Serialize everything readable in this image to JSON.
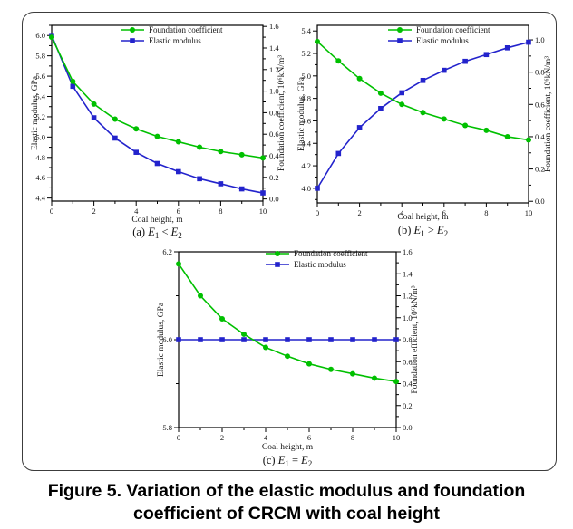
{
  "figure": {
    "caption_line1": "Figure 5. Variation of the elastic modulus and foundation",
    "caption_line2": "coefficient of CRCM with coal height"
  },
  "colors": {
    "foundation_green": "#00C000",
    "elastic_blue": "#2323CC",
    "axis_black": "#000000",
    "border_gray": "#3c3c3c"
  },
  "chart_data": [
    {
      "id": "a",
      "type": "line",
      "xlabel": "Coal height, m",
      "x": [
        0,
        1,
        2,
        3,
        4,
        5,
        6,
        7,
        8,
        9,
        10
      ],
      "xlim": [
        0,
        10
      ],
      "x_major_ticks": [
        0,
        2,
        4,
        6,
        8,
        10
      ],
      "x_minor_ticks": [
        1,
        3,
        5,
        7,
        9
      ],
      "grid": false,
      "legend_position": "top-center-inside",
      "left_axis": {
        "label": "Elastic modulus, GPa",
        "min": 4.37,
        "max": 6.1,
        "major_ticks": [
          4.4,
          4.6,
          4.8,
          5.0,
          5.2,
          5.4,
          5.6,
          5.8,
          6.0
        ],
        "minor_step": 0.1,
        "decimals": 1
      },
      "right_axis": {
        "label": "Foundation coefficient, 10⁶kN/m³",
        "min": -0.02,
        "max": 1.61,
        "major_ticks": [
          0.0,
          0.2,
          0.4,
          0.6,
          0.8,
          1.0,
          1.2,
          1.4,
          1.6
        ],
        "minor_step": 0.1,
        "decimals": 1
      },
      "series": [
        {
          "name": "Foundation coefficient",
          "axis": "right",
          "color": "foundation_green",
          "marker": "circle",
          "values": [
            1.5,
            1.09,
            0.88,
            0.74,
            0.65,
            0.58,
            0.53,
            0.48,
            0.44,
            0.41,
            0.38
          ]
        },
        {
          "name": "Elastic modulus",
          "axis": "left",
          "color": "elastic_blue",
          "marker": "square",
          "values": [
            6.0,
            5.5,
            5.19,
            4.99,
            4.85,
            4.74,
            4.66,
            4.59,
            4.54,
            4.49,
            4.45
          ]
        }
      ],
      "sub_label": {
        "prefix": "(a)",
        "lhs_base": "E",
        "lhs_sub": "1",
        "operator": "<",
        "rhs_base": "E",
        "rhs_sub": "2"
      }
    },
    {
      "id": "b",
      "type": "line",
      "xlabel": "Coal height, m",
      "x": [
        0,
        1,
        2,
        3,
        4,
        5,
        6,
        7,
        8,
        9,
        10
      ],
      "xlim": [
        0,
        10
      ],
      "x_major_ticks": [
        0,
        2,
        4,
        6,
        8,
        10
      ],
      "x_minor_ticks": [
        1,
        3,
        5,
        7,
        9
      ],
      "grid": false,
      "legend_position": "top-center-inside",
      "left_axis": {
        "label": "Elastic modulus, GPa",
        "min": 3.87,
        "max": 5.45,
        "major_ticks": [
          4.0,
          4.2,
          4.4,
          4.6,
          4.8,
          5.0,
          5.2,
          5.4
        ],
        "minor_step": 0.1,
        "decimals": 1
      },
      "right_axis": {
        "label": "Foundation coefficient, 10⁶kN/m³",
        "min": -0.01,
        "max": 1.09,
        "major_ticks": [
          0.0,
          0.2,
          0.4,
          0.6,
          0.8,
          1.0
        ],
        "minor_step": 0.1,
        "decimals": 1
      },
      "series": [
        {
          "name": "Foundation coefficient",
          "axis": "right",
          "color": "foundation_green",
          "marker": "circle",
          "values": [
            0.99,
            0.87,
            0.76,
            0.67,
            0.6,
            0.55,
            0.51,
            0.47,
            0.44,
            0.4,
            0.38
          ]
        },
        {
          "name": "Elastic modulus",
          "axis": "left",
          "color": "elastic_blue",
          "marker": "square",
          "values": [
            4.0,
            4.31,
            4.54,
            4.71,
            4.85,
            4.96,
            5.05,
            5.13,
            5.19,
            5.25,
            5.3
          ]
        }
      ],
      "sub_label": {
        "prefix": "(b)",
        "lhs_base": "E",
        "lhs_sub": "1",
        "operator": ">",
        "rhs_base": "E",
        "rhs_sub": "2"
      }
    },
    {
      "id": "c",
      "type": "line",
      "xlabel": "Coal height, m",
      "x": [
        0,
        1,
        2,
        3,
        4,
        5,
        6,
        7,
        8,
        9,
        10
      ],
      "xlim": [
        0,
        10
      ],
      "x_major_ticks": [
        0,
        2,
        4,
        6,
        8,
        10
      ],
      "x_minor_ticks": [
        1,
        3,
        5,
        7,
        9
      ],
      "grid": false,
      "legend_position": "top-center-inside",
      "left_axis": {
        "label": "Elastic modulus, GPa",
        "min": 5.8,
        "max": 6.2,
        "major_ticks": [
          5.8,
          6.0,
          6.2
        ],
        "minor_step": 0.1,
        "decimals": 1
      },
      "right_axis": {
        "label": "Foundation efficient, 10⁶kN/m³",
        "min": 0.0,
        "max": 1.6,
        "major_ticks": [
          0.0,
          0.2,
          0.4,
          0.6,
          0.8,
          1.0,
          1.2,
          1.4,
          1.6
        ],
        "minor_step": 0.1,
        "decimals": 1
      },
      "series": [
        {
          "name": "Foundation coefficient",
          "axis": "right",
          "color": "foundation_green",
          "marker": "circle",
          "values": [
            1.49,
            1.2,
            0.99,
            0.85,
            0.73,
            0.65,
            0.58,
            0.53,
            0.49,
            0.45,
            0.42
          ]
        },
        {
          "name": "Elastic modulus",
          "axis": "left",
          "color": "elastic_blue",
          "marker": "square",
          "values": [
            6.0,
            6.0,
            6.0,
            6.0,
            6.0,
            6.0,
            6.0,
            6.0,
            6.0,
            6.0,
            6.0
          ]
        }
      ],
      "sub_label": {
        "prefix": "(c)",
        "lhs_base": "E",
        "lhs_sub": "1",
        "operator": "=",
        "rhs_base": "E",
        "rhs_sub": "2"
      }
    }
  ]
}
